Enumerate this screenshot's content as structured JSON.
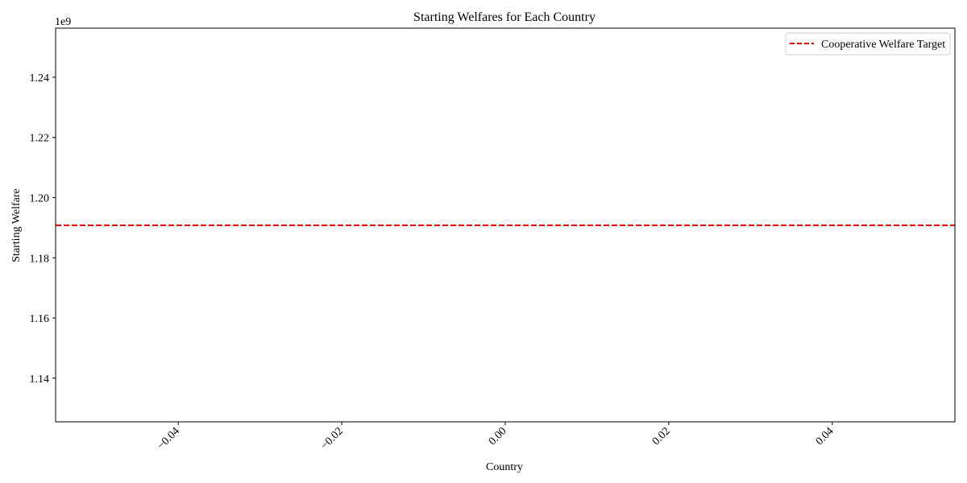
{
  "chart_data": {
    "type": "line",
    "title": "Starting Welfares for Each Country",
    "xlabel": "Country",
    "ylabel": "Starting Welfare",
    "y_offset_label": "1e9",
    "xlim": [
      -0.055,
      0.055
    ],
    "ylim": [
      1.1255,
      1.2563
    ],
    "x_ticks": [
      -0.04,
      -0.02,
      0.0,
      0.02,
      0.04
    ],
    "x_tick_labels": [
      "−0.04",
      "−0.02",
      "0.00",
      "0.02",
      "0.04"
    ],
    "x_tick_rotation": 45,
    "y_ticks": [
      1.14,
      1.16,
      1.18,
      1.2,
      1.22,
      1.24
    ],
    "y_tick_labels": [
      "1.14",
      "1.16",
      "1.18",
      "1.20",
      "1.22",
      "1.24"
    ],
    "grid": false,
    "legend_position": "top-right",
    "series": [
      {
        "name": "Cooperative Welfare Target",
        "kind": "horizontal-line",
        "y": 1.1908,
        "color": "#e00000",
        "style": "dashed"
      }
    ]
  }
}
